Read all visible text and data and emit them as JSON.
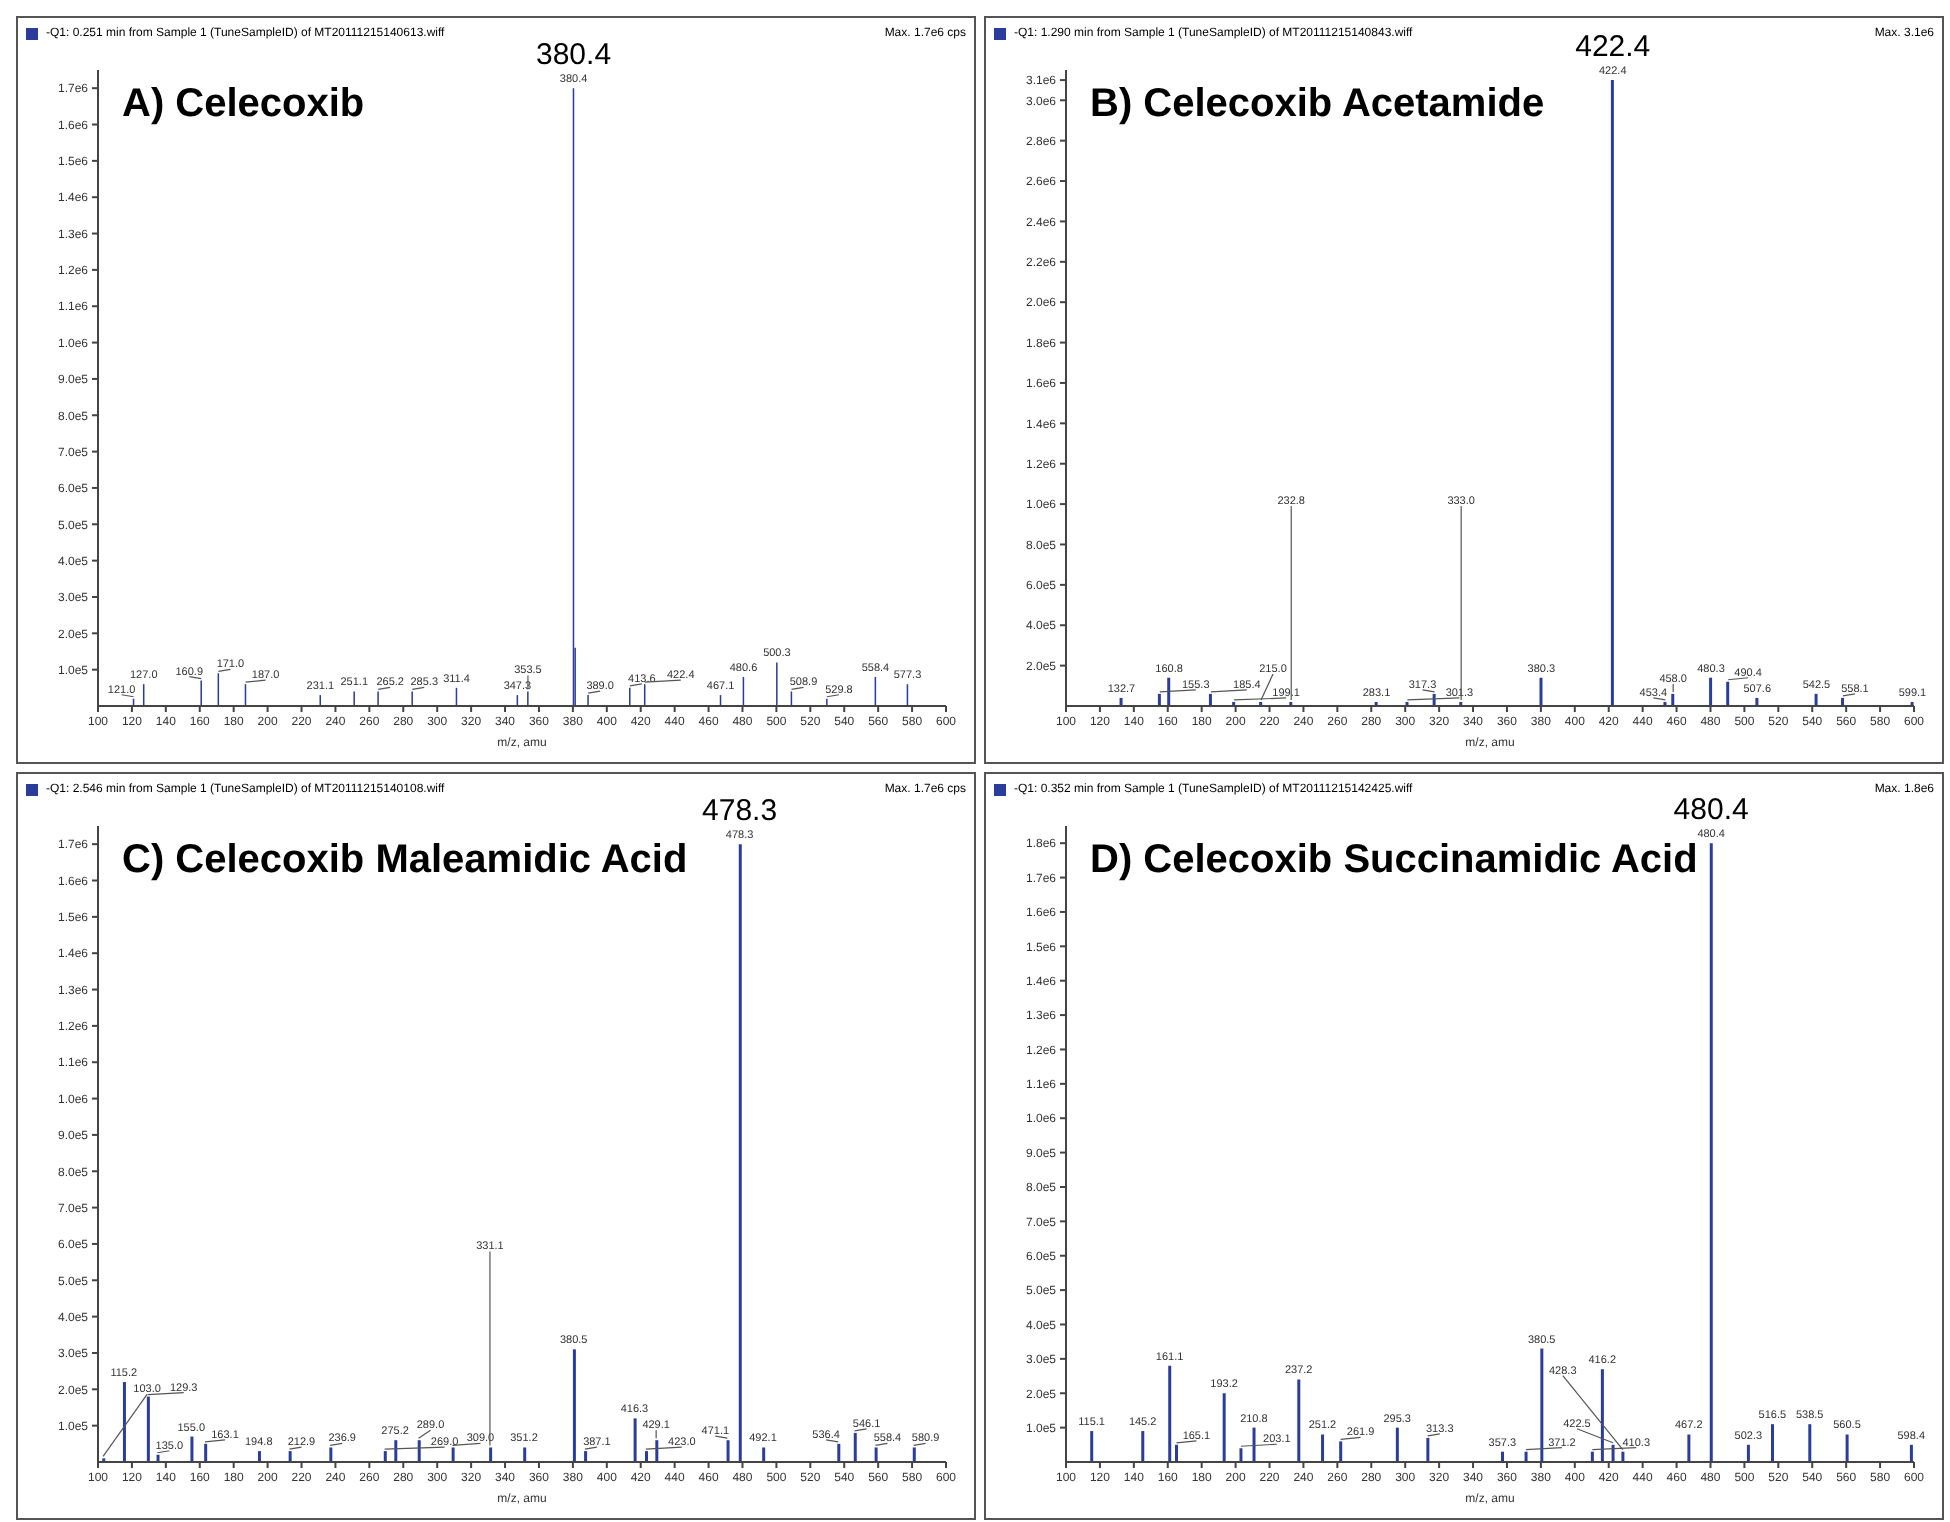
{
  "chart_data": [
    {
      "type": "bar",
      "title": "A) Celecoxib",
      "subtitle": "-Q1: 0.251 min from Sample 1 (TuneSampleID) of MT20111215140613.wiff",
      "xlabel": "m/z, amu",
      "color": "#2b3d9c",
      "x": [
        121.0,
        127.0,
        160.9,
        171.0,
        187.0,
        231.1,
        251.1,
        265.2,
        285.3,
        311.4,
        347.3,
        353.5,
        380.4,
        381.4,
        389.0,
        413.6,
        422.4,
        467.1,
        480.6,
        500.3,
        508.9,
        529.8,
        558.4,
        577.3
      ],
      "values": [
        20000,
        60000,
        70000,
        90000,
        60000,
        30000,
        40000,
        40000,
        40000,
        50000,
        30000,
        40000,
        1700000,
        160000,
        30000,
        50000,
        60000,
        30000,
        80000,
        120000,
        40000,
        20000,
        80000,
        60000
      ],
      "annotations": [
        "Max. 1.7e6 cps",
        {
          "text": "380.4",
          "x": 380.4,
          "y": 1700000
        },
        {
          "text": "121.0",
          "x": 121.0,
          "y": 20000
        },
        {
          "text": "127.0",
          "x": 127.0,
          "y": 60000
        },
        {
          "text": "160.9",
          "x": 160.9,
          "y": 70000
        },
        {
          "text": "171.0",
          "x": 171.0,
          "y": 90000
        },
        {
          "text": "187.0",
          "x": 187.0,
          "y": 60000
        },
        {
          "text": "231.1",
          "x": 231.1,
          "y": 30000
        },
        {
          "text": "251.1",
          "x": 251.1,
          "y": 40000
        },
        {
          "text": "265.2",
          "x": 265.2,
          "y": 40000
        },
        {
          "text": "285.3",
          "x": 285.3,
          "y": 40000
        },
        {
          "text": "311.4",
          "x": 311.4,
          "y": 50000
        },
        {
          "text": "347.3",
          "x": 347.3,
          "y": 30000
        },
        {
          "text": "353.5",
          "x": 353.5,
          "y": 40000
        },
        {
          "text": "380.4",
          "x": 380.4,
          "y": 1700000
        },
        {
          "text": "389.0",
          "x": 389.0,
          "y": 30000
        },
        {
          "text": "413.6",
          "x": 413.6,
          "y": 50000
        },
        {
          "text": "422.4",
          "x": 422.4,
          "y": 60000
        },
        {
          "text": "467.1",
          "x": 467.1,
          "y": 30000
        },
        {
          "text": "480.6",
          "x": 480.6,
          "y": 80000
        },
        {
          "text": "500.3",
          "x": 500.3,
          "y": 120000
        },
        {
          "text": "508.9",
          "x": 508.9,
          "y": 40000
        },
        {
          "text": "529.8",
          "x": 529.8,
          "y": 20000
        },
        {
          "text": "558.4",
          "x": 558.4,
          "y": 80000
        },
        {
          "text": "577.3",
          "x": 577.3,
          "y": 60000
        }
      ],
      "xlim": [
        100,
        600
      ],
      "xticks": [
        100,
        120,
        140,
        160,
        180,
        200,
        220,
        240,
        260,
        280,
        300,
        320,
        340,
        360,
        380,
        400,
        420,
        440,
        460,
        480,
        500,
        520,
        540,
        560,
        580,
        600
      ],
      "ylim": [
        0,
        1750000
      ],
      "yticks": [
        {
          "value": 100000,
          "label": "1.0e5"
        },
        {
          "value": 200000,
          "label": "2.0e5"
        },
        {
          "value": 300000,
          "label": "3.0e5"
        },
        {
          "value": 400000,
          "label": "4.0e5"
        },
        {
          "value": 500000,
          "label": "5.0e5"
        },
        {
          "value": 600000,
          "label": "6.0e5"
        },
        {
          "value": 700000,
          "label": "7.0e5"
        },
        {
          "value": 800000,
          "label": "8.0e5"
        },
        {
          "value": 900000,
          "label": "9.0e5"
        },
        {
          "value": 1000000,
          "label": "1.0e6"
        },
        {
          "value": 1100000,
          "label": "1.1e6"
        },
        {
          "value": 1200000,
          "label": "1.2e6"
        },
        {
          "value": 1300000,
          "label": "1.3e6"
        },
        {
          "value": 1400000,
          "label": "1.4e6"
        },
        {
          "value": 1500000,
          "label": "1.5e6"
        },
        {
          "value": 1600000,
          "label": "1.6e6"
        },
        {
          "value": 1700000,
          "label": "1.7e6"
        }
      ]
    },
    {
      "type": "bar",
      "title": "B) Celecoxib Acetamide",
      "subtitle": "-Q1: 1.290 min from Sample 1 (TuneSampleID) of MT20111215140843.wiff",
      "xlabel": "m/z, amu",
      "color": "#2b3d9c",
      "x": [
        132.7,
        155.3,
        160.8,
        185.4,
        199.1,
        215.0,
        232.8,
        283.1,
        301.3,
        317.3,
        333.0,
        380.3,
        422.4,
        453.4,
        458.0,
        480.3,
        490.4,
        507.6,
        542.5,
        558.1,
        599.1
      ],
      "values": [
        40000,
        60000,
        140000,
        60000,
        20000,
        20000,
        20000,
        20000,
        20000,
        60000,
        20000,
        140000,
        3100000,
        20000,
        60000,
        140000,
        120000,
        40000,
        60000,
        40000,
        20000
      ],
      "annotations": [
        "Max. 3.1e6",
        {
          "text": "422.4",
          "x": 422.4,
          "y": 3100000
        },
        {
          "text": "132.7",
          "x": 132.7,
          "y": 40000
        },
        {
          "text": "155.3",
          "x": 155.3,
          "y": 60000
        },
        {
          "text": "160.8",
          "x": 160.8,
          "y": 140000
        },
        {
          "text": "185.4",
          "x": 185.4,
          "y": 60000
        },
        {
          "text": "199.1",
          "x": 199.1,
          "y": 20000
        },
        {
          "text": "215.0",
          "x": 215.0,
          "y": 20000
        },
        {
          "text": "232.8",
          "x": 232.8,
          "y": 20000
        },
        {
          "text": "283.1",
          "x": 283.1,
          "y": 20000
        },
        {
          "text": "301.3",
          "x": 301.3,
          "y": 20000
        },
        {
          "text": "317.3",
          "x": 317.3,
          "y": 60000
        },
        {
          "text": "333.0",
          "x": 333.0,
          "y": 20000
        },
        {
          "text": "380.3",
          "x": 380.3,
          "y": 140000
        },
        {
          "text": "422.4",
          "x": 422.4,
          "y": 3100000
        },
        {
          "text": "453.4",
          "x": 453.4,
          "y": 20000
        },
        {
          "text": "458.0",
          "x": 458.0,
          "y": 60000
        },
        {
          "text": "480.3",
          "x": 480.3,
          "y": 140000
        },
        {
          "text": "490.4",
          "x": 490.4,
          "y": 120000
        },
        {
          "text": "507.6",
          "x": 507.6,
          "y": 40000
        },
        {
          "text": "542.5",
          "x": 542.5,
          "y": 60000
        },
        {
          "text": "558.1",
          "x": 558.1,
          "y": 40000
        },
        {
          "text": "599.1",
          "x": 599.1,
          "y": 20000
        }
      ],
      "xlim": [
        100,
        600
      ],
      "xticks": [
        100,
        120,
        140,
        160,
        180,
        200,
        220,
        240,
        260,
        280,
        300,
        320,
        340,
        360,
        380,
        400,
        420,
        440,
        460,
        480,
        500,
        520,
        540,
        560,
        580,
        600
      ],
      "ylim": [
        0,
        3150000
      ],
      "yticks": [
        {
          "value": 200000,
          "label": "2.0e5"
        },
        {
          "value": 400000,
          "label": "4.0e5"
        },
        {
          "value": 600000,
          "label": "6.0e5"
        },
        {
          "value": 800000,
          "label": "8.0e5"
        },
        {
          "value": 1000000,
          "label": "1.0e6"
        },
        {
          "value": 1200000,
          "label": "1.2e6"
        },
        {
          "value": 1400000,
          "label": "1.4e6"
        },
        {
          "value": 1600000,
          "label": "1.6e6"
        },
        {
          "value": 1800000,
          "label": "1.8e6"
        },
        {
          "value": 2000000,
          "label": "2.0e6"
        },
        {
          "value": 2200000,
          "label": "2.2e6"
        },
        {
          "value": 2400000,
          "label": "2.4e6"
        },
        {
          "value": 2600000,
          "label": "2.6e6"
        },
        {
          "value": 2800000,
          "label": "2.8e6"
        },
        {
          "value": 3000000,
          "label": "3.0e6"
        },
        {
          "value": 3100000,
          "label": "3.1e6"
        }
      ]
    },
    {
      "type": "bar",
      "title": "C) Celecoxib Maleamidic Acid",
      "subtitle": "-Q1: 2.546 min from Sample 1 (TuneSampleID) of MT20111215140108.wiff",
      "xlabel": "m/z, amu",
      "color": "#2b3d9c",
      "x": [
        103.0,
        115.2,
        129.3,
        135.0,
        155.0,
        163.1,
        194.8,
        212.9,
        236.9,
        269.0,
        275.2,
        289.0,
        309.0,
        331.1,
        351.2,
        380.5,
        387.1,
        416.3,
        423.0,
        429.1,
        471.1,
        478.3,
        492.1,
        536.4,
        546.1,
        558.4,
        580.9
      ],
      "values": [
        10000,
        220000,
        180000,
        20000,
        70000,
        50000,
        30000,
        30000,
        40000,
        30000,
        60000,
        60000,
        40000,
        40000,
        40000,
        310000,
        30000,
        120000,
        30000,
        60000,
        60000,
        1700000,
        40000,
        50000,
        80000,
        40000,
        40000
      ],
      "annotations": [
        "Max. 1.7e6 cps",
        {
          "text": "478.3",
          "x": 478.3,
          "y": 1700000
        },
        {
          "text": "103.0",
          "x": 103.0,
          "y": 10000
        },
        {
          "text": "115.2",
          "x": 115.2,
          "y": 220000
        },
        {
          "text": "129.3",
          "x": 129.3,
          "y": 180000
        },
        {
          "text": "135.0",
          "x": 135.0,
          "y": 20000
        },
        {
          "text": "155.0",
          "x": 155.0,
          "y": 70000
        },
        {
          "text": "163.1",
          "x": 163.1,
          "y": 50000
        },
        {
          "text": "194.8",
          "x": 194.8,
          "y": 30000
        },
        {
          "text": "212.9",
          "x": 212.9,
          "y": 30000
        },
        {
          "text": "236.9",
          "x": 236.9,
          "y": 40000
        },
        {
          "text": "269.0",
          "x": 269.0,
          "y": 30000
        },
        {
          "text": "275.2",
          "x": 275.2,
          "y": 60000
        },
        {
          "text": "289.0",
          "x": 289.0,
          "y": 60000
        },
        {
          "text": "309.0",
          "x": 309.0,
          "y": 40000
        },
        {
          "text": "331.1",
          "x": 331.1,
          "y": 40000
        },
        {
          "text": "351.2",
          "x": 351.2,
          "y": 40000
        },
        {
          "text": "380.5",
          "x": 380.5,
          "y": 310000
        },
        {
          "text": "387.1",
          "x": 387.1,
          "y": 30000
        },
        {
          "text": "416.3",
          "x": 416.3,
          "y": 120000
        },
        {
          "text": "423.0",
          "x": 423.0,
          "y": 30000
        },
        {
          "text": "429.1",
          "x": 429.1,
          "y": 60000
        },
        {
          "text": "471.1",
          "x": 471.1,
          "y": 60000
        },
        {
          "text": "478.3",
          "x": 478.3,
          "y": 1700000
        },
        {
          "text": "492.1",
          "x": 492.1,
          "y": 40000
        },
        {
          "text": "536.4",
          "x": 536.4,
          "y": 50000
        },
        {
          "text": "546.1",
          "x": 546.1,
          "y": 80000
        },
        {
          "text": "558.4",
          "x": 558.4,
          "y": 40000
        },
        {
          "text": "580.9",
          "x": 580.9,
          "y": 40000
        }
      ],
      "xlim": [
        100,
        600
      ],
      "xticks": [
        100,
        120,
        140,
        160,
        180,
        200,
        220,
        240,
        260,
        280,
        300,
        320,
        340,
        360,
        380,
        400,
        420,
        440,
        460,
        480,
        500,
        520,
        540,
        560,
        580,
        600
      ],
      "ylim": [
        0,
        1750000
      ],
      "yticks": [
        {
          "value": 100000,
          "label": "1.0e5"
        },
        {
          "value": 200000,
          "label": "2.0e5"
        },
        {
          "value": 300000,
          "label": "3.0e5"
        },
        {
          "value": 400000,
          "label": "4.0e5"
        },
        {
          "value": 500000,
          "label": "5.0e5"
        },
        {
          "value": 600000,
          "label": "6.0e5"
        },
        {
          "value": 700000,
          "label": "7.0e5"
        },
        {
          "value": 800000,
          "label": "8.0e5"
        },
        {
          "value": 900000,
          "label": "9.0e5"
        },
        {
          "value": 1000000,
          "label": "1.0e6"
        },
        {
          "value": 1100000,
          "label": "1.1e6"
        },
        {
          "value": 1200000,
          "label": "1.2e6"
        },
        {
          "value": 1300000,
          "label": "1.3e6"
        },
        {
          "value": 1400000,
          "label": "1.4e6"
        },
        {
          "value": 1500000,
          "label": "1.5e6"
        },
        {
          "value": 1600000,
          "label": "1.6e6"
        },
        {
          "value": 1700000,
          "label": "1.7e6"
        }
      ]
    },
    {
      "type": "bar",
      "title": "D) Celecoxib Succinamidic Acid",
      "subtitle": "-Q1: 0.352 min from Sample 1 (TuneSampleID) of MT20111215142425.wiff",
      "xlabel": "m/z, amu",
      "color": "#2b3d9c",
      "x": [
        115.1,
        145.2,
        161.1,
        165.1,
        193.2,
        203.1,
        210.8,
        237.2,
        251.2,
        261.9,
        295.3,
        313.3,
        357.3,
        371.2,
        380.5,
        410.3,
        416.2,
        422.5,
        428.3,
        467.2,
        480.4,
        502.3,
        516.5,
        538.5,
        560.5,
        598.4
      ],
      "values": [
        90000,
        90000,
        280000,
        50000,
        200000,
        40000,
        100000,
        240000,
        80000,
        60000,
        100000,
        70000,
        30000,
        30000,
        330000,
        30000,
        270000,
        50000,
        30000,
        80000,
        1800000,
        50000,
        110000,
        110000,
        80000,
        50000
      ],
      "annotations": [
        "Max. 1.8e6",
        {
          "text": "480.4",
          "x": 480.4,
          "y": 1800000
        },
        {
          "text": "115.1",
          "x": 115.1,
          "y": 90000
        },
        {
          "text": "145.2",
          "x": 145.2,
          "y": 90000
        },
        {
          "text": "161.1",
          "x": 161.1,
          "y": 280000
        },
        {
          "text": "165.1",
          "x": 165.1,
          "y": 50000
        },
        {
          "text": "193.2",
          "x": 193.2,
          "y": 200000
        },
        {
          "text": "203.1",
          "x": 203.1,
          "y": 40000
        },
        {
          "text": "210.8",
          "x": 210.8,
          "y": 100000
        },
        {
          "text": "237.2",
          "x": 237.2,
          "y": 240000
        },
        {
          "text": "251.2",
          "x": 251.2,
          "y": 80000
        },
        {
          "text": "261.9",
          "x": 261.9,
          "y": 60000
        },
        {
          "text": "295.3",
          "x": 295.3,
          "y": 100000
        },
        {
          "text": "313.3",
          "x": 313.3,
          "y": 70000
        },
        {
          "text": "357.3",
          "x": 357.3,
          "y": 30000
        },
        {
          "text": "371.2",
          "x": 371.2,
          "y": 30000
        },
        {
          "text": "380.5",
          "x": 380.5,
          "y": 330000
        },
        {
          "text": "410.3",
          "x": 410.3,
          "y": 30000
        },
        {
          "text": "416.2",
          "x": 416.2,
          "y": 270000
        },
        {
          "text": "422.5",
          "x": 422.5,
          "y": 50000
        },
        {
          "text": "428.3",
          "x": 428.3,
          "y": 30000
        },
        {
          "text": "467.2",
          "x": 467.2,
          "y": 80000
        },
        {
          "text": "480.4",
          "x": 480.4,
          "y": 1800000
        },
        {
          "text": "502.3",
          "x": 502.3,
          "y": 50000
        },
        {
          "text": "516.5",
          "x": 516.5,
          "y": 110000
        },
        {
          "text": "538.5",
          "x": 538.5,
          "y": 110000
        },
        {
          "text": "560.5",
          "x": 560.5,
          "y": 80000
        },
        {
          "text": "598.4",
          "x": 598.4,
          "y": 50000
        }
      ],
      "xlim": [
        100,
        600
      ],
      "xticks": [
        100,
        120,
        140,
        160,
        180,
        200,
        220,
        240,
        260,
        280,
        300,
        320,
        340,
        360,
        380,
        400,
        420,
        440,
        460,
        480,
        500,
        520,
        540,
        560,
        580,
        600
      ],
      "ylim": [
        0,
        1850000
      ],
      "yticks": [
        {
          "value": 100000,
          "label": "1.0e5"
        },
        {
          "value": 200000,
          "label": "2.0e5"
        },
        {
          "value": 300000,
          "label": "3.0e5"
        },
        {
          "value": 400000,
          "label": "4.0e5"
        },
        {
          "value": 500000,
          "label": "5.0e5"
        },
        {
          "value": 600000,
          "label": "6.0e5"
        },
        {
          "value": 700000,
          "label": "7.0e5"
        },
        {
          "value": 800000,
          "label": "8.0e5"
        },
        {
          "value": 900000,
          "label": "9.0e5"
        },
        {
          "value": 1000000,
          "label": "1.0e6"
        },
        {
          "value": 1100000,
          "label": "1.1e6"
        },
        {
          "value": 1200000,
          "label": "1.2e6"
        },
        {
          "value": 1300000,
          "label": "1.3e6"
        },
        {
          "value": 1400000,
          "label": "1.4e6"
        },
        {
          "value": 1500000,
          "label": "1.5e6"
        },
        {
          "value": 1600000,
          "label": "1.6e6"
        },
        {
          "value": 1700000,
          "label": "1.7e6"
        },
        {
          "value": 1800000,
          "label": "1.8e6"
        }
      ]
    }
  ]
}
